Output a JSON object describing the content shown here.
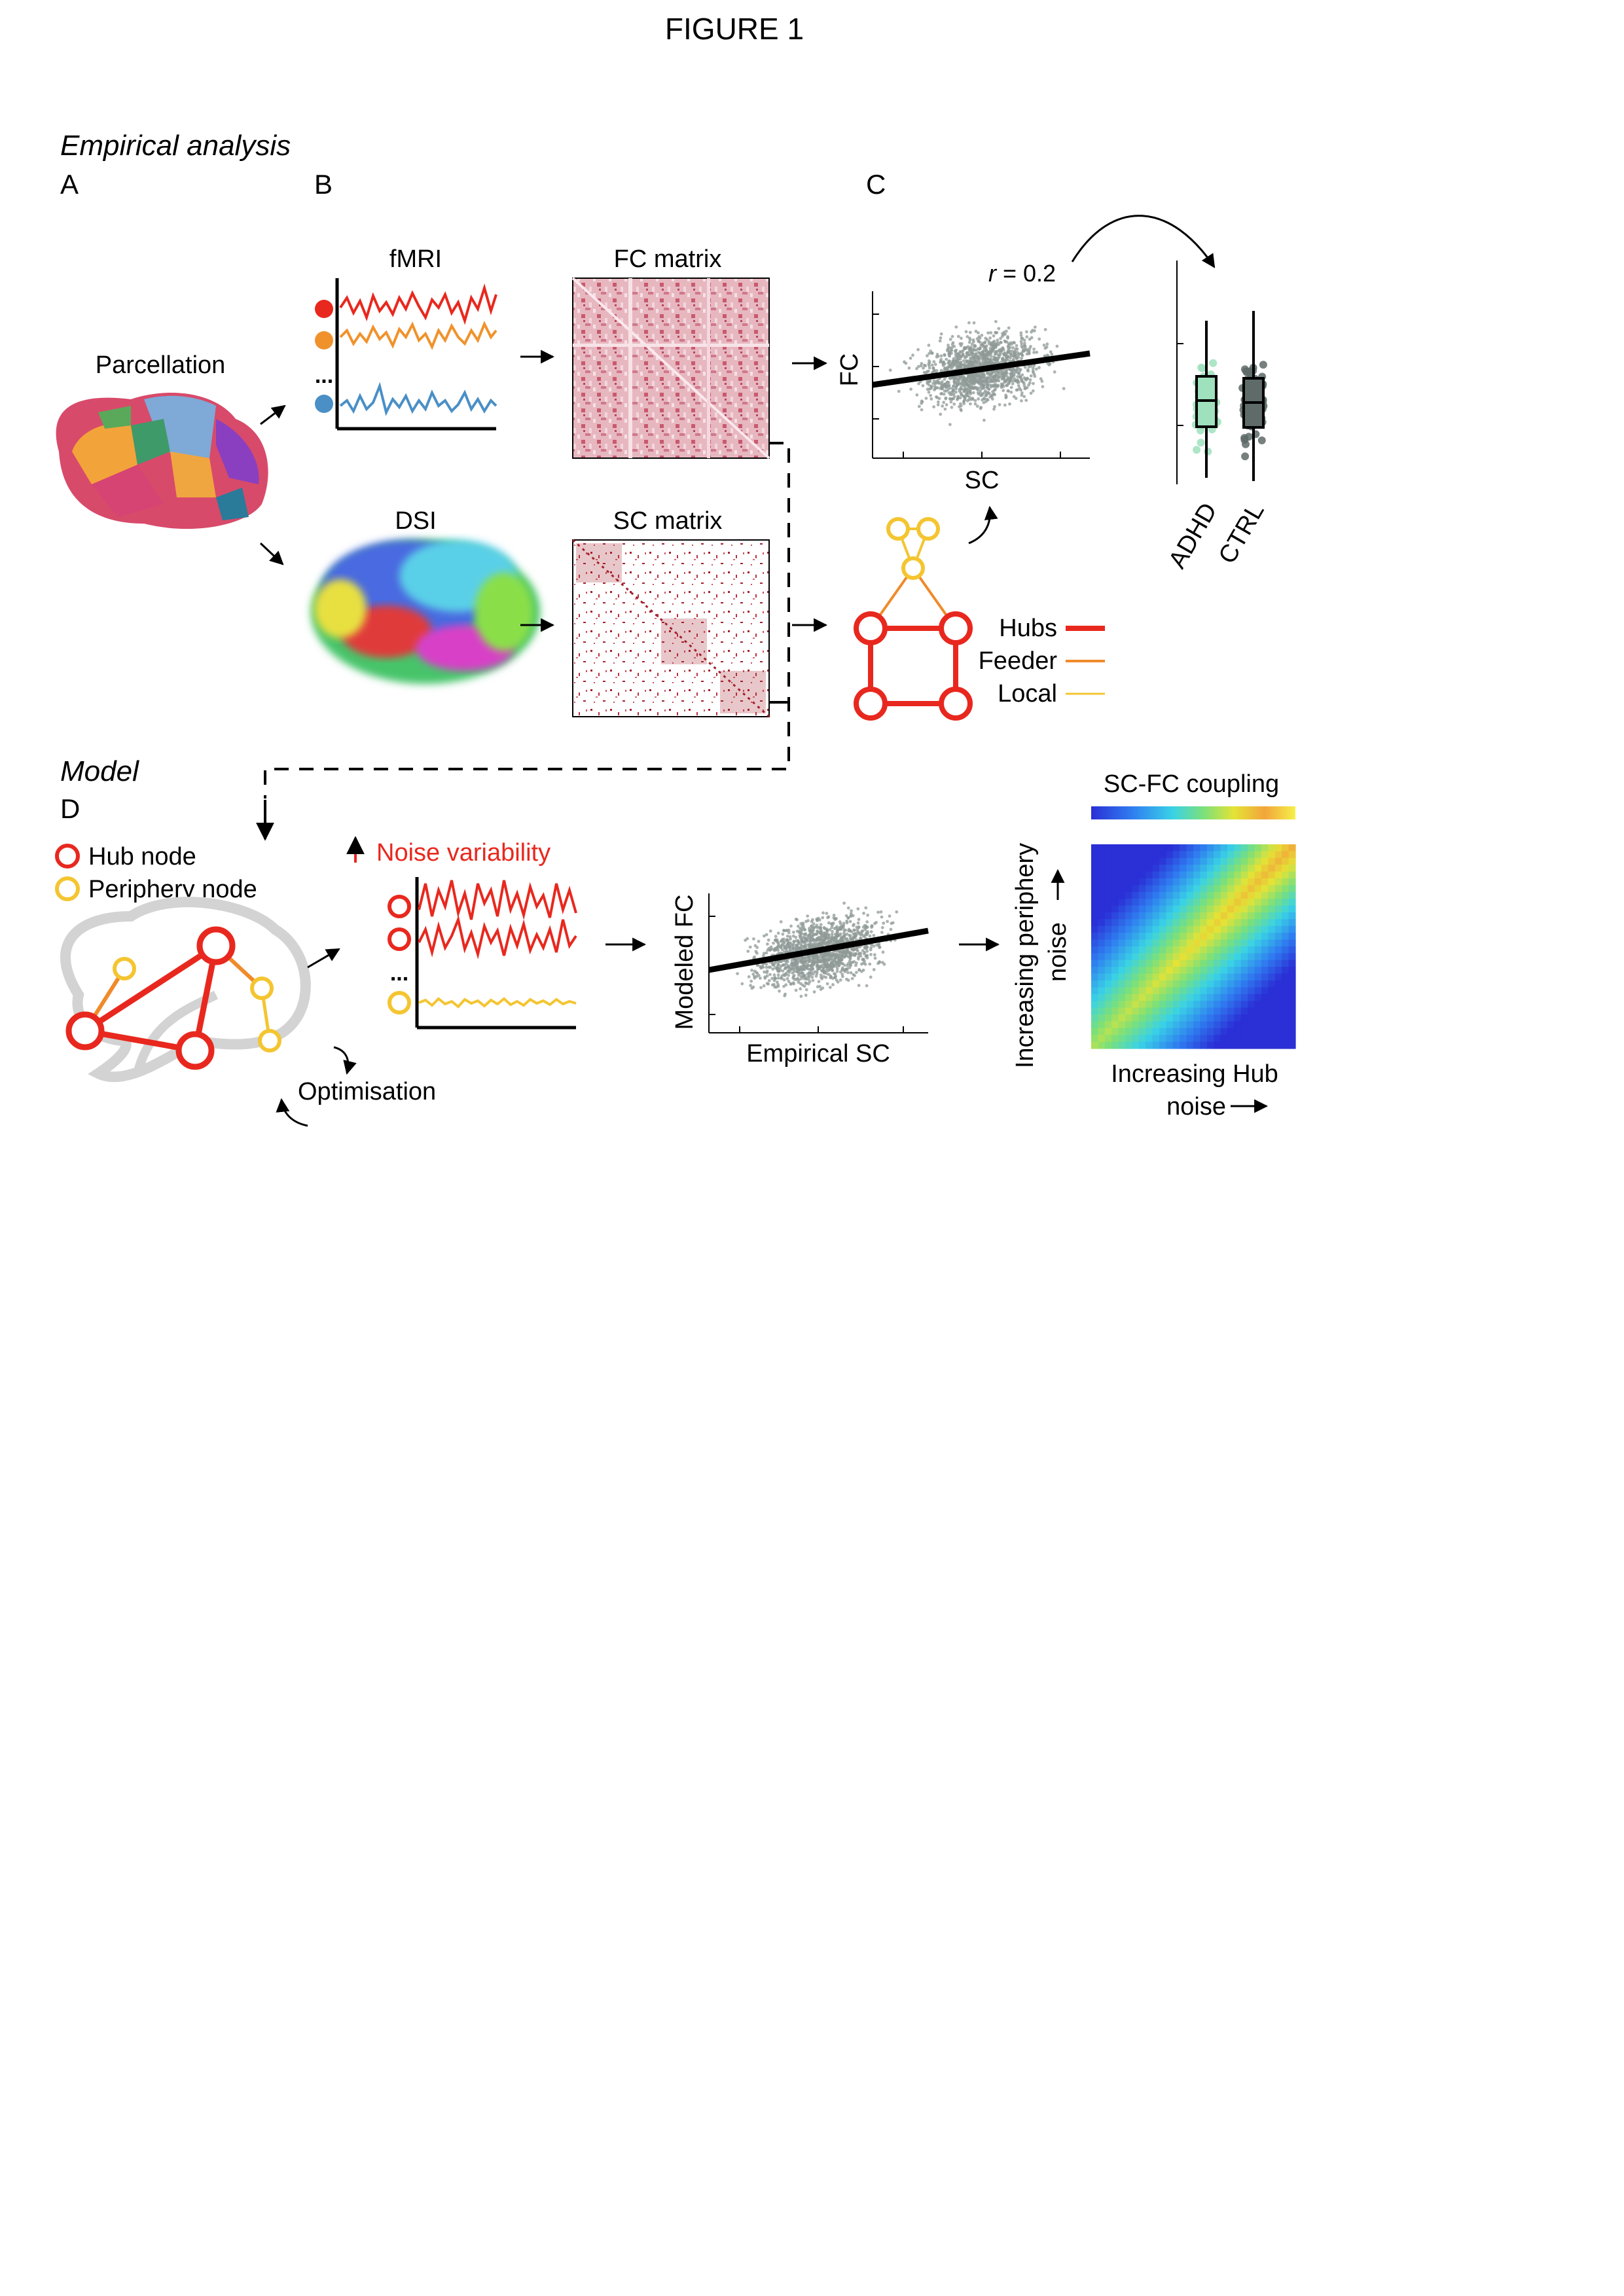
{
  "figure_title": "FIGURE 1",
  "sections": {
    "empirical": "Empirical analysis",
    "model": "Model"
  },
  "panels": {
    "a": "A",
    "b": "B",
    "c": "C",
    "d": "D"
  },
  "panel_a": {
    "label": "Parcellation"
  },
  "panel_b": {
    "fmri": "fMRI",
    "dsi": "DSI",
    "fc_matrix": "FC matrix",
    "sc_matrix": "SC matrix",
    "ellipsis": "..."
  },
  "panel_c": {
    "r_symbol": "r",
    "r_value": " = 0.2",
    "xlabel": "SC",
    "ylabel": "FC",
    "legend": {
      "hubs": "Hubs",
      "feeder": "Feeder",
      "local": "Local"
    },
    "box_groups": [
      "ADHD",
      "CTRL"
    ]
  },
  "panel_d": {
    "hub_node": "Hub node",
    "periphery_node": "Periphery node",
    "noise_variability": "Noise variability",
    "optimisation": "Optimisation",
    "ellipsis": "...",
    "scatter_xlabel": "Empirical SC",
    "scatter_ylabel": "Modeled FC",
    "coupling_title": "SC-FC coupling",
    "heat_xlabel_1": "Increasing Hub",
    "heat_xlabel_2": "noise",
    "heat_ylabel_1": "Increasing periphery",
    "heat_ylabel_2": "noise"
  },
  "colors": {
    "hub": "#e8281e",
    "feeder": "#f08a2a",
    "local": "#f4c531",
    "orange_series": "#f0922c",
    "blue_series": "#4a8fc6",
    "scatter_gray": "#8f9a97",
    "adhd": "#9fe0bd",
    "ctrl": "#5e6b69",
    "matrix_fc": "#c8506a",
    "matrix_sc": "#a3202c"
  },
  "icons": [
    "brain-parcellation-icon",
    "dsi-tractography-icon",
    "brain-outline-icon"
  ]
}
